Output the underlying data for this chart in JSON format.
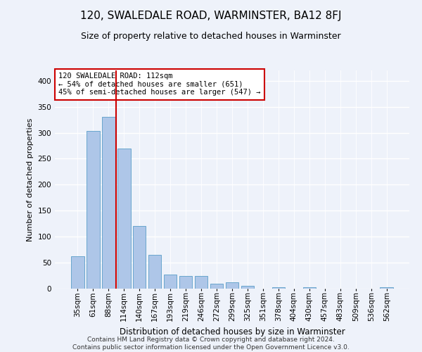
{
  "title": "120, SWALEDALE ROAD, WARMINSTER, BA12 8FJ",
  "subtitle": "Size of property relative to detached houses in Warminster",
  "xlabel": "Distribution of detached houses by size in Warminster",
  "ylabel": "Number of detached properties",
  "bar_labels": [
    "35sqm",
    "61sqm",
    "88sqm",
    "114sqm",
    "140sqm",
    "167sqm",
    "193sqm",
    "219sqm",
    "246sqm",
    "272sqm",
    "299sqm",
    "325sqm",
    "351sqm",
    "378sqm",
    "404sqm",
    "430sqm",
    "457sqm",
    "483sqm",
    "509sqm",
    "536sqm",
    "562sqm"
  ],
  "bar_values": [
    62,
    303,
    330,
    270,
    120,
    65,
    27,
    25,
    25,
    10,
    12,
    5,
    0,
    3,
    0,
    3,
    0,
    0,
    0,
    0,
    3
  ],
  "bar_color": "#aec6e8",
  "bar_edge_color": "#5a9ec8",
  "vline_color": "#cc0000",
  "vline_pos": 2.5,
  "annotation_text": "120 SWALEDALE ROAD: 112sqm\n← 54% of detached houses are smaller (651)\n45% of semi-detached houses are larger (547) →",
  "annotation_box_color": "#ffffff",
  "annotation_box_edge": "#cc0000",
  "ylim": [
    0,
    420
  ],
  "yticks": [
    0,
    50,
    100,
    150,
    200,
    250,
    300,
    350,
    400
  ],
  "footer_line1": "Contains HM Land Registry data © Crown copyright and database right 2024.",
  "footer_line2": "Contains public sector information licensed under the Open Government Licence v3.0.",
  "bg_color": "#eef2fa",
  "plot_bg_color": "#eef2fa",
  "title_fontsize": 11,
  "subtitle_fontsize": 9,
  "ylabel_fontsize": 8,
  "xlabel_fontsize": 8.5,
  "tick_fontsize": 7.5,
  "footer_fontsize": 6.5,
  "annotation_fontsize": 7.5
}
